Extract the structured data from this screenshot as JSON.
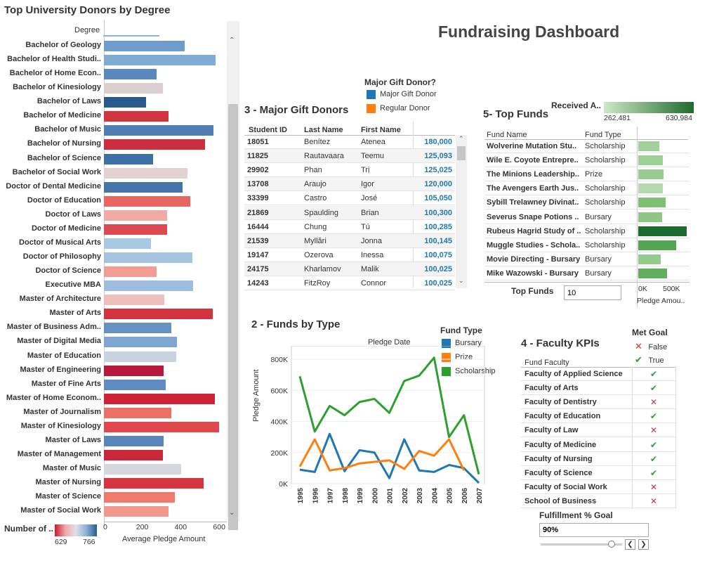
{
  "dashboard_title": "Fundraising Dashboard",
  "donors_panel": {
    "title": "Top University Donors by Degree",
    "column_header": "Degree",
    "x_axis_label": "Average Pledge Amount",
    "x_ticks": [
      "0",
      "200",
      "400",
      "600"
    ],
    "color_legend_title": "Number of ..",
    "color_legend_min": "629",
    "color_legend_max": "766",
    "rows": [
      {
        "degree": "Bachelor of Geology",
        "value": 420,
        "color": "#6f9dcb"
      },
      {
        "degree": "Bachelor of Health Studi..",
        "value": 580,
        "color": "#7facd5"
      },
      {
        "degree": "Bachelor of Home Econ..",
        "value": 275,
        "color": "#5a88bd"
      },
      {
        "degree": "Bachelor of Kinesiology",
        "value": 305,
        "color": "#dccfcf"
      },
      {
        "degree": "Bachelor of Laws",
        "value": 220,
        "color": "#2a5a8d"
      },
      {
        "degree": "Bachelor of Medicine",
        "value": 335,
        "color": "#d0363f"
      },
      {
        "degree": "Bachelor of Music",
        "value": 570,
        "color": "#4e7eb4"
      },
      {
        "degree": "Bachelor of Nursing",
        "value": 525,
        "color": "#cc2e3e"
      },
      {
        "degree": "Bachelor of Science",
        "value": 255,
        "color": "#3e6ea6"
      },
      {
        "degree": "Bachelor of Social Work",
        "value": 435,
        "color": "#e3d2d2"
      },
      {
        "degree": "Doctor of Dental Medicine",
        "value": 410,
        "color": "#4874ac"
      },
      {
        "degree": "Doctor of Education",
        "value": 450,
        "color": "#e8665f"
      },
      {
        "degree": "Doctor of Laws",
        "value": 330,
        "color": "#f1aaa4"
      },
      {
        "degree": "Doctor of Medicine",
        "value": 330,
        "color": "#dc4a52"
      },
      {
        "degree": "Doctor of Musical Arts",
        "value": 245,
        "color": "#a9c8e4"
      },
      {
        "degree": "Doctor of Philosophy",
        "value": 460,
        "color": "#a5c4e0"
      },
      {
        "degree": "Doctor of Science",
        "value": 275,
        "color": "#f29c93"
      },
      {
        "degree": "Executive MBA",
        "value": 465,
        "color": "#9cbde0"
      },
      {
        "degree": "Master of Architecture",
        "value": 315,
        "color": "#efbfbb"
      },
      {
        "degree": "Master of Arts",
        "value": 565,
        "color": "#d3323f"
      },
      {
        "degree": "Master of Business Adm..",
        "value": 350,
        "color": "#6692c3"
      },
      {
        "degree": "Master of Digital Media",
        "value": 380,
        "color": "#7da7d2"
      },
      {
        "degree": "Master of Education",
        "value": 375,
        "color": "#c9d3df"
      },
      {
        "degree": "Master of Engineering",
        "value": 310,
        "color": "#b8193a"
      },
      {
        "degree": "Master of Fine Arts",
        "value": 320,
        "color": "#5e8cc0"
      },
      {
        "degree": "Master of Home Econom..",
        "value": 575,
        "color": "#cc2436"
      },
      {
        "degree": "Master of Journalism",
        "value": 350,
        "color": "#eb7164"
      },
      {
        "degree": "Master of Kinesiology",
        "value": 600,
        "color": "#e0474c"
      },
      {
        "degree": "Master of Laws",
        "value": 310,
        "color": "#5a86bb"
      },
      {
        "degree": "Master of Management",
        "value": 305,
        "color": "#c72738"
      },
      {
        "degree": "Master of Music",
        "value": 400,
        "color": "#d5d7dd"
      },
      {
        "degree": "Master of Nursing",
        "value": 520,
        "color": "#d6343f"
      },
      {
        "degree": "Master of Science",
        "value": 370,
        "color": "#ec7a6d"
      },
      {
        "degree": "Master of Social Work",
        "value": 335,
        "color": "#f4988d"
      }
    ]
  },
  "major_gift_legend": {
    "title": "Major Gift Donor?",
    "items": [
      {
        "label": "Major Gift Donor",
        "color": "#1f77b4"
      },
      {
        "label": "Regular Donor",
        "color": "#ff7f0e"
      }
    ]
  },
  "major_donors": {
    "title": "3 - Major Gift Donors",
    "headers": [
      "Student ID",
      "Last Name",
      "First Name"
    ],
    "rows": [
      {
        "id": "18051",
        "last": "Benítez",
        "first": "Atenea",
        "amount": "180,000"
      },
      {
        "id": "11825",
        "last": "Rautavaara",
        "first": "Teemu",
        "amount": "125,093"
      },
      {
        "id": "29902",
        "last": "Phan",
        "first": "Trị",
        "amount": "125,025"
      },
      {
        "id": "13708",
        "last": "Araujo",
        "first": "Igor",
        "amount": "120,000"
      },
      {
        "id": "33399",
        "last": "Castro",
        "first": "José",
        "amount": "105,050"
      },
      {
        "id": "21869",
        "last": "Spaulding",
        "first": "Brian",
        "amount": "100,300"
      },
      {
        "id": "16444",
        "last": "Chung",
        "first": "Tú",
        "amount": "100,285"
      },
      {
        "id": "21539",
        "last": "Myllări",
        "first": "Jonna",
        "amount": "100,145"
      },
      {
        "id": "19147",
        "last": "Ozerova",
        "first": "Inessa",
        "amount": "100,075"
      },
      {
        "id": "24175",
        "last": "Kharlamov",
        "first": "Malik",
        "amount": "100,025"
      },
      {
        "id": "14243",
        "last": "FitzRoy",
        "first": "Connor",
        "amount": "100,025"
      }
    ]
  },
  "top_funds": {
    "title": "5- Top Funds",
    "headers": [
      "Fund Name",
      "Fund Type"
    ],
    "received_label": "Received A..",
    "received_min": "262,481",
    "received_max": "630,984",
    "axis_ticks": [
      "0K",
      "500K"
    ],
    "axis_label": "Pledge Amou..",
    "filter_label": "Top Funds",
    "filter_value": "10",
    "rows": [
      {
        "name": "Wolverine Mutation Stu..",
        "type": "Scholarship",
        "value": 270,
        "color": "#a3d19b"
      },
      {
        "name": "Wile E. Coyote Entrepre..",
        "type": "Scholarship",
        "value": 320,
        "color": "#9fcf96"
      },
      {
        "name": "The Minions Leadership..",
        "type": "Prize",
        "value": 325,
        "color": "#99cc90"
      },
      {
        "name": "The Avengers Earth Jus..",
        "type": "Scholarship",
        "value": 320,
        "color": "#b4d9ac"
      },
      {
        "name": "Sybill Trelawney Divinat..",
        "type": "Scholarship",
        "value": 350,
        "color": "#7fbf76"
      },
      {
        "name": "Severus Snape Potions ..",
        "type": "Bursary",
        "value": 310,
        "color": "#8fc686"
      },
      {
        "name": "Rubeus Hagrid Study of ..",
        "type": "Scholarship",
        "value": 630,
        "color": "#1d6b2c"
      },
      {
        "name": "Muggle Studies - Schola..",
        "type": "Scholarship",
        "value": 490,
        "color": "#54a453"
      },
      {
        "name": "Movie Directing - Bursary",
        "type": "Bursary",
        "value": 290,
        "color": "#95ca8c"
      },
      {
        "name": "Mike Wazowski - Bursary",
        "type": "Bursary",
        "value": 370,
        "color": "#62ae5f"
      }
    ]
  },
  "funds_by_type": {
    "title": "2 - Funds by Type",
    "x_header": "Pledge Date",
    "y_label": "Pledge Amount",
    "legend_title": "Fund Type"
  },
  "chart_data": {
    "type": "line",
    "title": "2 - Funds by Type",
    "xlabel": "Pledge Date",
    "ylabel": "Pledge Amount",
    "x": [
      "1995",
      "1996",
      "1997",
      "1998",
      "1999",
      "2000",
      "2001",
      "2002",
      "2003",
      "2004",
      "2005",
      "2006",
      "2007"
    ],
    "y_ticks": [
      "0K",
      "200K",
      "400K",
      "600K",
      "800K"
    ],
    "ylim": [
      0,
      850000
    ],
    "series": [
      {
        "name": "Bursary",
        "color": "#1f77b4",
        "values": [
          90000,
          75000,
          320000,
          80000,
          215000,
          200000,
          35000,
          285000,
          85000,
          75000,
          120000,
          100000,
          5000
        ]
      },
      {
        "name": "Prize",
        "color": "#ff7f0e",
        "values": [
          110000,
          285000,
          85000,
          100000,
          130000,
          140000,
          150000,
          95000,
          210000,
          180000,
          285000,
          85000,
          null
        ]
      },
      {
        "name": "Scholarship",
        "color": "#2ca02c",
        "values": [
          690000,
          335000,
          500000,
          440000,
          525000,
          545000,
          455000,
          660000,
          695000,
          810000,
          300000,
          440000,
          60000
        ]
      }
    ]
  },
  "faculty_kpis": {
    "title": "4 - Faculty KPIs",
    "column_header": "Fund Faculty",
    "legend_title": "Met Goal",
    "legend_false": "False",
    "legend_true": "True",
    "rows": [
      {
        "faculty": "Faculty of Applied Science",
        "met": "✔",
        "ok": true
      },
      {
        "faculty": "Faculty of Arts",
        "met": "✔",
        "ok": true
      },
      {
        "faculty": "Faculty of Dentistry",
        "met": "✕",
        "ok": false
      },
      {
        "faculty": "Faculty of Education",
        "met": "✔",
        "ok": true
      },
      {
        "faculty": "Faculty of Law",
        "met": "✕",
        "ok": false
      },
      {
        "faculty": "Faculty of Medicine",
        "met": "✔",
        "ok": true
      },
      {
        "faculty": "Faculty of Nursing",
        "met": "✔",
        "ok": true
      },
      {
        "faculty": "Faculty of Science",
        "met": "✔",
        "ok": true
      },
      {
        "faculty": "Faculty of Social Work",
        "met": "✕",
        "ok": false
      },
      {
        "faculty": "School of Business",
        "met": "✕",
        "ok": false
      }
    ],
    "goal_label": "Fulfillment % Goal",
    "goal_value": "90%"
  }
}
